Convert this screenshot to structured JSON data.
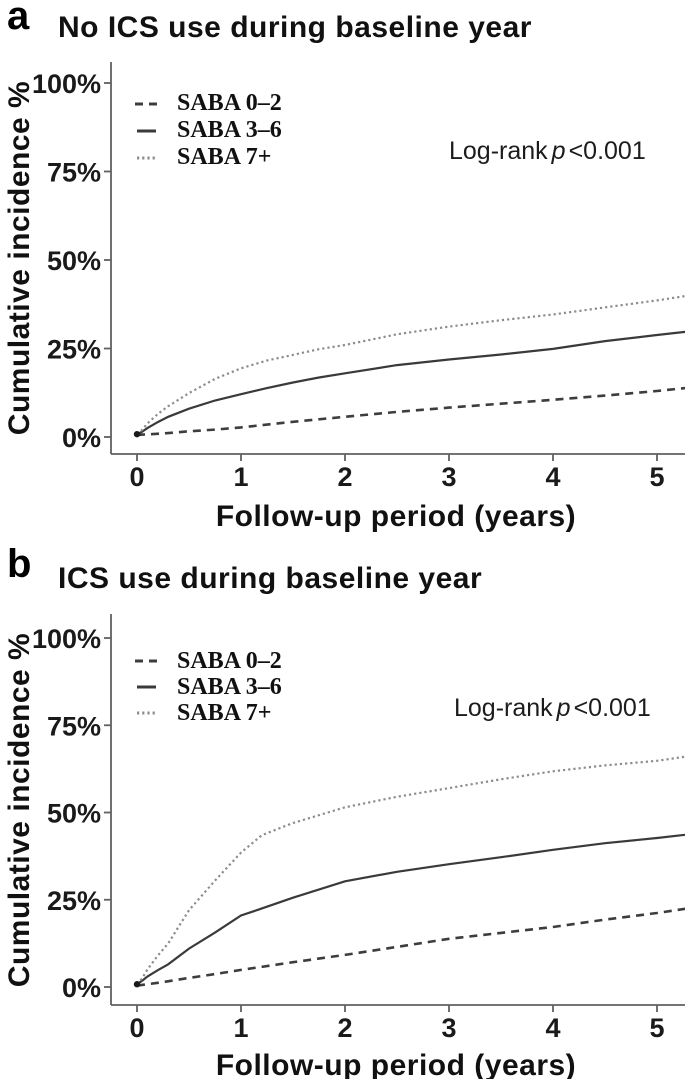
{
  "figure": {
    "background_color": "#ffffff",
    "accent_color": "#3a3a3a"
  },
  "panels": [
    {
      "panel_label": "a",
      "title": "No ICS use during baseline year",
      "ylabel": "Cumulative incidence %",
      "xlabel": "Follow-up period (years)",
      "logrank": {
        "prefix": "Log-rank",
        "p": "p",
        "rest": "<0.001"
      },
      "legend": [
        {
          "label": "SABA 0–2",
          "style": "dashed"
        },
        {
          "label": "SABA 3–6",
          "style": "solid"
        },
        {
          "label": "SABA 7+",
          "style": "dotted"
        }
      ]
    },
    {
      "panel_label": "b",
      "title": "ICS use during baseline year",
      "ylabel": "Cumulative incidence %",
      "xlabel": "Follow-up period (years)",
      "logrank": {
        "prefix": "Log-rank",
        "p": "p",
        "rest": "<0.001"
      },
      "legend": [
        {
          "label": "SABA 0–2",
          "style": "dashed"
        },
        {
          "label": "SABA 3–6",
          "style": "solid"
        },
        {
          "label": "SABA 7+",
          "style": "dotted"
        }
      ]
    }
  ],
  "chart_data": [
    {
      "type": "line",
      "title": "No ICS use during baseline year",
      "xlabel": "Follow-up period (years)",
      "ylabel": "Cumulative incidence %",
      "xlim": [
        0,
        5.3
      ],
      "ylim": [
        0,
        100
      ],
      "x_ticks": [
        0,
        1,
        2,
        3,
        4,
        5
      ],
      "y_ticks": [
        0,
        25,
        50,
        75,
        100
      ],
      "y_tick_labels": [
        "0%",
        "25%",
        "50%",
        "75%",
        "100%"
      ],
      "grid": false,
      "legend_position": "inside-top-left",
      "annotation": "Log-rank p<0.001",
      "series": [
        {
          "name": "SABA 0–2",
          "style": "dashed",
          "color": "#3d3d3d",
          "points": [
            [
              0,
              0.6
            ],
            [
              0.25,
              1.0
            ],
            [
              0.5,
              1.6
            ],
            [
              0.75,
              2.1
            ],
            [
              1,
              2.7
            ],
            [
              1.5,
              4.3
            ],
            [
              2,
              5.7
            ],
            [
              2.5,
              7.1
            ],
            [
              3,
              8.3
            ],
            [
              3.5,
              9.4
            ],
            [
              4,
              10.5
            ],
            [
              4.5,
              11.7
            ],
            [
              5,
              13.0
            ],
            [
              5.27,
              13.8
            ]
          ]
        },
        {
          "name": "SABA 3–6",
          "style": "solid",
          "color": "#3a3a3a",
          "points": [
            [
              0,
              0.8
            ],
            [
              0.05,
              1.5
            ],
            [
              0.1,
              2.5
            ],
            [
              0.2,
              4.2
            ],
            [
              0.3,
              5.7
            ],
            [
              0.5,
              8.0
            ],
            [
              0.75,
              10.3
            ],
            [
              1,
              12.1
            ],
            [
              1.25,
              13.8
            ],
            [
              1.5,
              15.4
            ],
            [
              1.75,
              16.8
            ],
            [
              2,
              18.0
            ],
            [
              2.5,
              20.3
            ],
            [
              3,
              21.9
            ],
            [
              3.5,
              23.3
            ],
            [
              4,
              24.9
            ],
            [
              4.5,
              27.1
            ],
            [
              5,
              28.8
            ],
            [
              5.27,
              29.7
            ]
          ]
        },
        {
          "name": "SABA 7+",
          "style": "dotted",
          "color": "#8c8c8c",
          "points": [
            [
              0,
              0.8
            ],
            [
              0.05,
              2.0
            ],
            [
              0.1,
              3.8
            ],
            [
              0.2,
              6.5
            ],
            [
              0.3,
              8.7
            ],
            [
              0.5,
              12.4
            ],
            [
              0.75,
              16.4
            ],
            [
              1,
              19.4
            ],
            [
              1.25,
              21.6
            ],
            [
              1.5,
              23.2
            ],
            [
              1.75,
              24.8
            ],
            [
              2,
              26.0
            ],
            [
              2.5,
              29.0
            ],
            [
              3,
              31.2
            ],
            [
              3.5,
              33.0
            ],
            [
              4,
              34.6
            ],
            [
              4.5,
              36.6
            ],
            [
              5,
              38.6
            ],
            [
              5.27,
              39.8
            ]
          ]
        }
      ]
    },
    {
      "type": "line",
      "title": "ICS use during baseline year",
      "xlabel": "Follow-up period (years)",
      "ylabel": "Cumulative incidence %",
      "xlim": [
        0,
        5.3
      ],
      "ylim": [
        0,
        100
      ],
      "x_ticks": [
        0,
        1,
        2,
        3,
        4,
        5
      ],
      "y_ticks": [
        0,
        25,
        50,
        75,
        100
      ],
      "y_tick_labels": [
        "0%",
        "25%",
        "50%",
        "75%",
        "100%"
      ],
      "grid": false,
      "legend_position": "inside-top-left",
      "annotation": "Log-rank p<0.001",
      "series": [
        {
          "name": "SABA 0–2",
          "style": "dashed",
          "color": "#3d3d3d",
          "points": [
            [
              0,
              0.4
            ],
            [
              0.25,
              1.4
            ],
            [
              0.5,
              2.6
            ],
            [
              0.75,
              3.7
            ],
            [
              1,
              4.9
            ],
            [
              1.5,
              7.1
            ],
            [
              2,
              9.2
            ],
            [
              2.5,
              11.5
            ],
            [
              3,
              13.8
            ],
            [
              3.5,
              15.5
            ],
            [
              4,
              17.2
            ],
            [
              4.5,
              19.3
            ],
            [
              5,
              21.2
            ],
            [
              5.27,
              22.4
            ]
          ]
        },
        {
          "name": "SABA 3–6",
          "style": "solid",
          "color": "#3a3a3a",
          "points": [
            [
              0,
              0.8
            ],
            [
              0.05,
              1.8
            ],
            [
              0.1,
              3.0
            ],
            [
              0.2,
              4.8
            ],
            [
              0.3,
              6.5
            ],
            [
              0.5,
              11.0
            ],
            [
              0.75,
              15.6
            ],
            [
              1,
              20.5
            ],
            [
              1.18,
              22.3
            ],
            [
              1.5,
              25.6
            ],
            [
              2,
              30.3
            ],
            [
              2.5,
              33.0
            ],
            [
              3,
              35.2
            ],
            [
              3.5,
              37.2
            ],
            [
              4,
              39.3
            ],
            [
              4.5,
              41.2
            ],
            [
              5,
              42.7
            ],
            [
              5.27,
              43.6
            ]
          ]
        },
        {
          "name": "SABA 7+",
          "style": "dotted",
          "color": "#8c8c8c",
          "points": [
            [
              0,
              0.8
            ],
            [
              0.05,
              2.5
            ],
            [
              0.1,
              5.0
            ],
            [
              0.2,
              9.0
            ],
            [
              0.3,
              12.5
            ],
            [
              0.5,
              22.0
            ],
            [
              0.75,
              30.5
            ],
            [
              1,
              38.5
            ],
            [
              1.2,
              43.5
            ],
            [
              1.5,
              47.0
            ],
            [
              2,
              51.5
            ],
            [
              2.5,
              54.5
            ],
            [
              3,
              57.0
            ],
            [
              3.5,
              59.5
            ],
            [
              4,
              61.8
            ],
            [
              4.5,
              63.5
            ],
            [
              5,
              64.8
            ],
            [
              5.27,
              66.0
            ]
          ]
        }
      ]
    }
  ]
}
